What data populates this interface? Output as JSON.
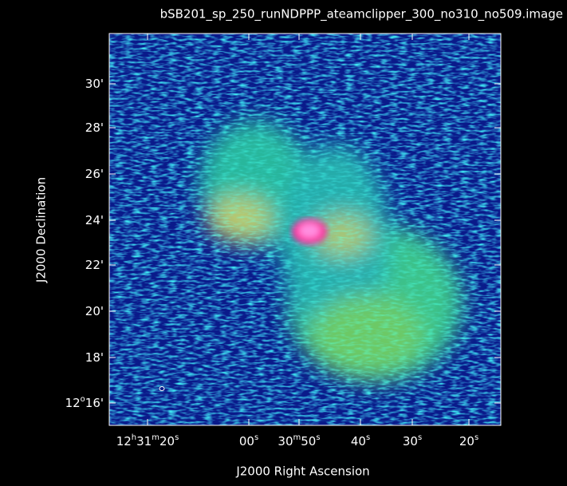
{
  "plot": {
    "title": "bSB201_sp_250_runNDPPP_ateamclipper_300_no310_no509.image",
    "x_label": "J2000 Right Ascension",
    "y_label": "J2000 Declination",
    "x_ticks": [
      [
        {
          "text": "12",
          "sup": false
        },
        {
          "text": "h",
          "sup": true
        },
        {
          "text": "31",
          "sup": false
        },
        {
          "text": "m",
          "sup": true
        },
        {
          "text": "20",
          "sup": false
        },
        {
          "text": "s",
          "sup": true
        }
      ],
      [
        {
          "text": "00",
          "sup": false
        },
        {
          "text": "s",
          "sup": true
        }
      ],
      [
        {
          "text": "30",
          "sup": false
        },
        {
          "text": "m",
          "sup": true
        },
        {
          "text": "50",
          "sup": false
        },
        {
          "text": "s",
          "sup": true
        }
      ],
      [
        {
          "text": "40",
          "sup": false
        },
        {
          "text": "s",
          "sup": true
        }
      ],
      [
        {
          "text": "30",
          "sup": false
        },
        {
          "text": "s",
          "sup": true
        }
      ],
      [
        {
          "text": "20",
          "sup": false
        },
        {
          "text": "s",
          "sup": true
        }
      ]
    ],
    "y_ticks": [
      [
        {
          "text": "30'",
          "sup": false
        }
      ],
      [
        {
          "text": "28'",
          "sup": false
        }
      ],
      [
        {
          "text": "26'",
          "sup": false
        }
      ],
      [
        {
          "text": "24'",
          "sup": false
        }
      ],
      [
        {
          "text": "22'",
          "sup": false
        }
      ],
      [
        {
          "text": "20'",
          "sup": false
        }
      ],
      [
        {
          "text": "18'",
          "sup": false
        }
      ],
      [
        {
          "text": "12",
          "sup": false
        },
        {
          "text": "o",
          "sup": true
        },
        {
          "text": "16'",
          "sup": false
        }
      ]
    ]
  }
}
